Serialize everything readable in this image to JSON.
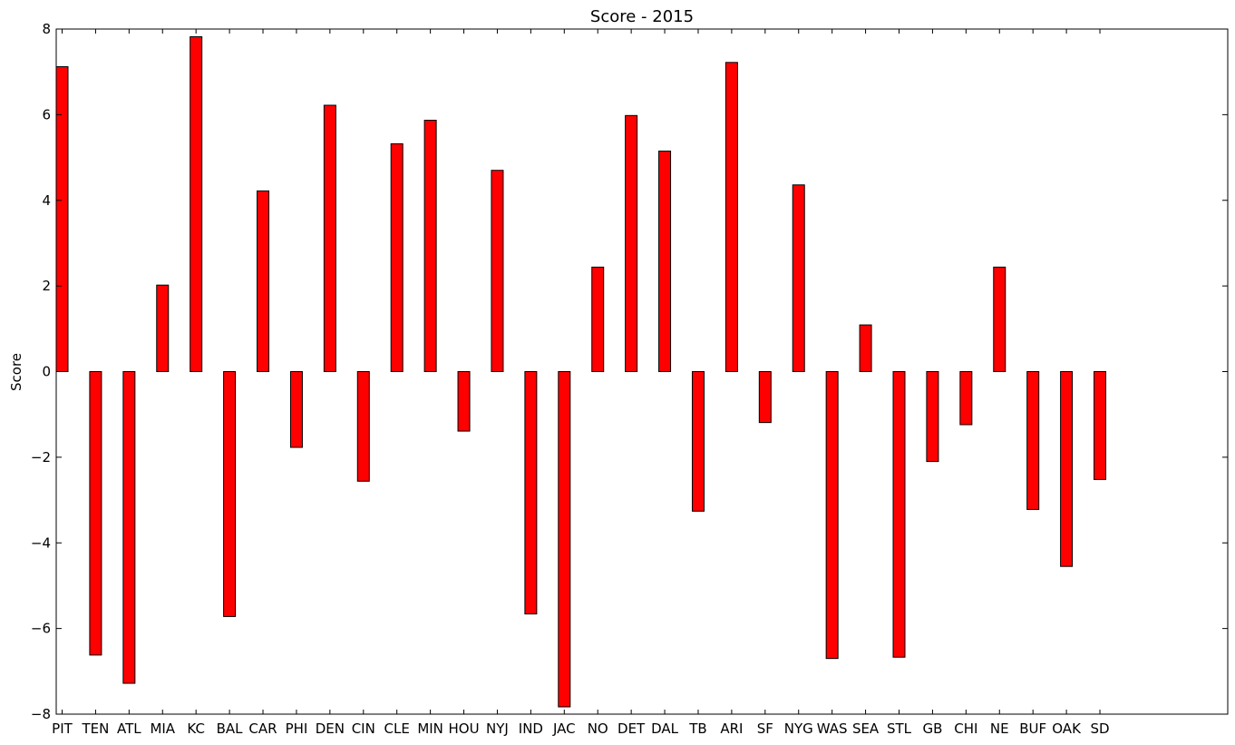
{
  "chart_data": {
    "type": "bar",
    "title": "Score - 2015",
    "xlabel": "",
    "ylabel": "Score",
    "ylim": [
      -8,
      8
    ],
    "yticks": [
      -8,
      -6,
      -4,
      -2,
      0,
      2,
      4,
      6,
      8
    ],
    "ytick_labels": [
      "−8",
      "−6",
      "−4",
      "−2",
      "0",
      "2",
      "4",
      "6",
      "8"
    ],
    "grid": false,
    "bar_color": "#ff0000",
    "edge_color": "#000000",
    "categories": [
      "PIT",
      "TEN",
      "ATL",
      "MIA",
      "KC",
      "BAL",
      "CAR",
      "PHI",
      "DEN",
      "CIN",
      "CLE",
      "MIN",
      "HOU",
      "NYJ",
      "IND",
      "JAC",
      "NO",
      "DET",
      "DAL",
      "TB",
      "ARI",
      "SF",
      "NYG",
      "WAS",
      "SEA",
      "STL",
      "GB",
      "CHI",
      "NE",
      "BUF",
      "OAK",
      "SD"
    ],
    "values": [
      7.12,
      -6.62,
      -7.28,
      2.02,
      7.82,
      -5.72,
      4.22,
      -1.77,
      6.22,
      -2.56,
      5.32,
      5.87,
      -1.39,
      4.7,
      -5.66,
      -7.83,
      2.44,
      5.98,
      5.15,
      -3.26,
      7.22,
      -1.19,
      4.36,
      -6.7,
      1.09,
      -6.67,
      -2.1,
      -1.24,
      2.44,
      -3.22,
      -4.55,
      -2.52
    ]
  }
}
